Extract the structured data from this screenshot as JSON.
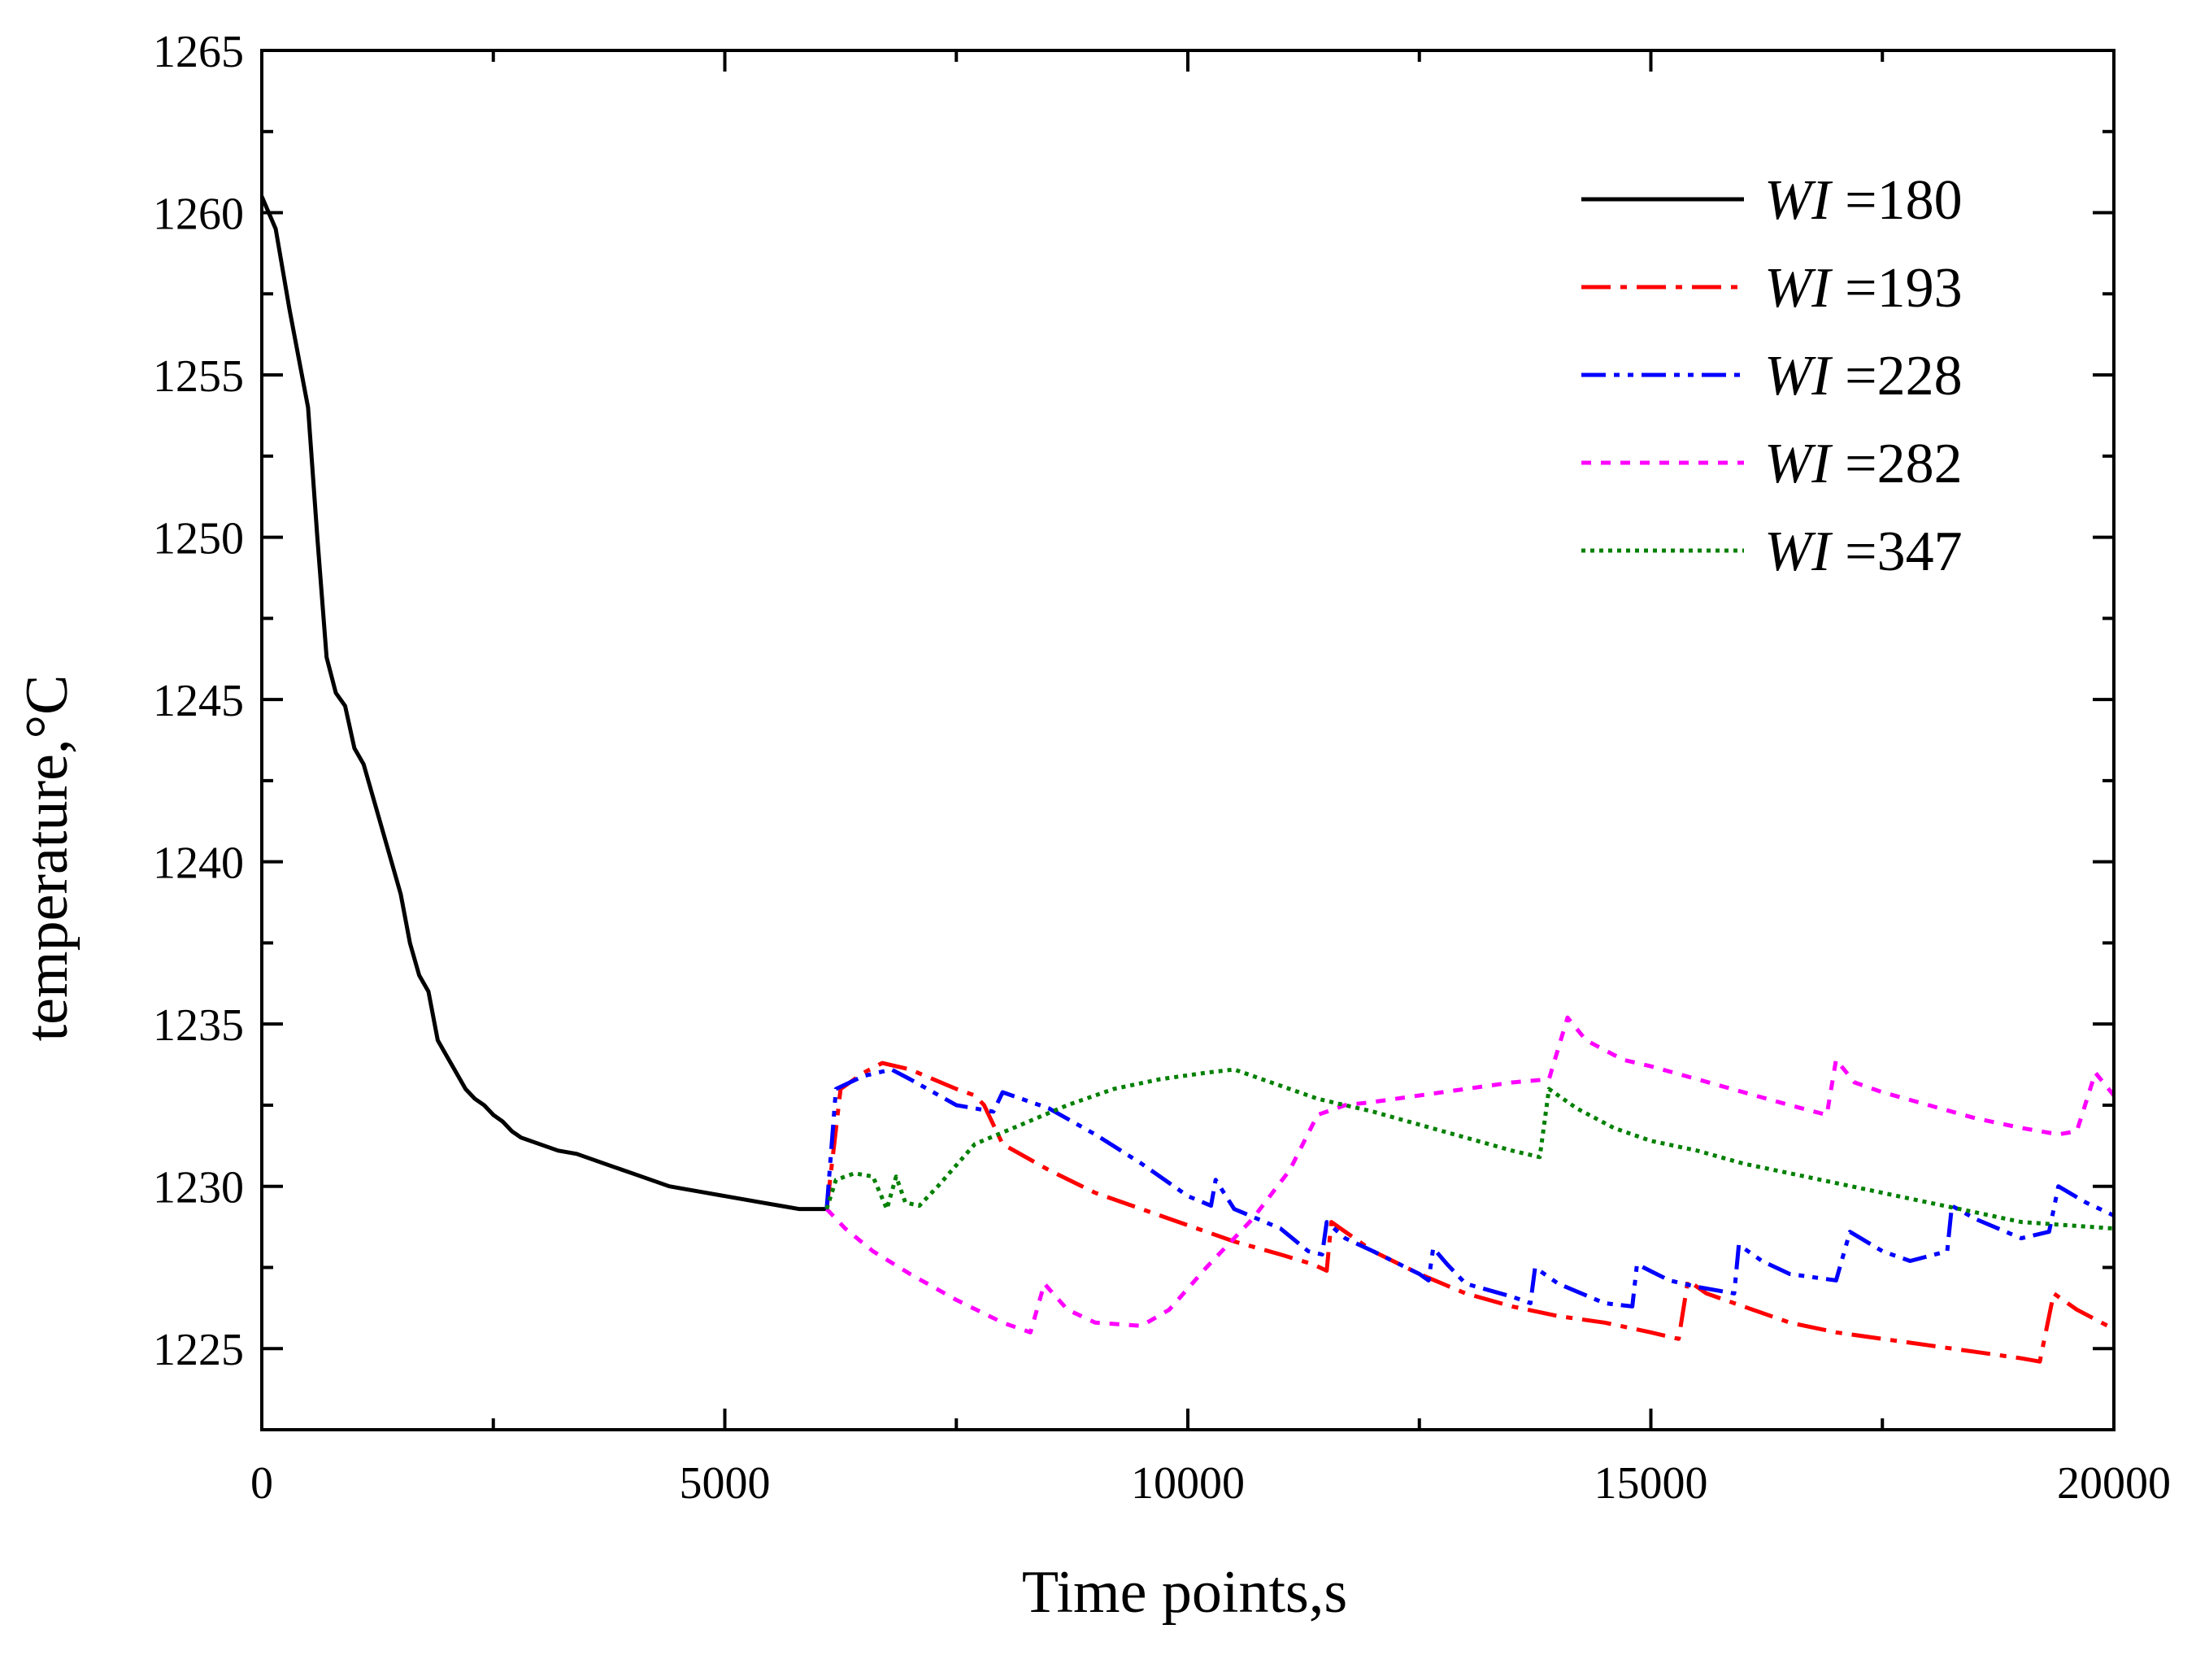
{
  "chart_data": {
    "type": "line",
    "title": "",
    "xlabel": "Time points,s",
    "ylabel": "temperature,°C",
    "xlim": [
      0,
      20000
    ],
    "ylim": [
      1222.5,
      1265
    ],
    "xticks": [
      0,
      5000,
      10000,
      15000,
      20000
    ],
    "yticks": [
      1225,
      1230,
      1235,
      1240,
      1245,
      1250,
      1255,
      1260,
      1265
    ],
    "legend_position": "top-right",
    "series": [
      {
        "name": "WI =180",
        "label_italic": "WI",
        "label_rest": " =180",
        "color": "#000000",
        "style": "solid",
        "points": [
          [
            0,
            1260.5
          ],
          [
            150,
            1259.5
          ],
          [
            300,
            1257
          ],
          [
            500,
            1254
          ],
          [
            600,
            1250
          ],
          [
            700,
            1246.3
          ],
          [
            800,
            1245.2
          ],
          [
            900,
            1244.8
          ],
          [
            1000,
            1243.5
          ],
          [
            1100,
            1243
          ],
          [
            1200,
            1242
          ],
          [
            1300,
            1241
          ],
          [
            1400,
            1240
          ],
          [
            1500,
            1239
          ],
          [
            1600,
            1237.5
          ],
          [
            1700,
            1236.5
          ],
          [
            1800,
            1236
          ],
          [
            1900,
            1234.5
          ],
          [
            2000,
            1234
          ],
          [
            2100,
            1233.5
          ],
          [
            2200,
            1233
          ],
          [
            2300,
            1232.7
          ],
          [
            2400,
            1232.5
          ],
          [
            2500,
            1232.2
          ],
          [
            2600,
            1232
          ],
          [
            2700,
            1231.7
          ],
          [
            2800,
            1231.5
          ],
          [
            3000,
            1231.3
          ],
          [
            3200,
            1231.1
          ],
          [
            3400,
            1231
          ],
          [
            3600,
            1230.8
          ],
          [
            3800,
            1230.6
          ],
          [
            4000,
            1230.4
          ],
          [
            4200,
            1230.2
          ],
          [
            4400,
            1230
          ],
          [
            4600,
            1229.9
          ],
          [
            4800,
            1229.8
          ],
          [
            5000,
            1229.7
          ],
          [
            5200,
            1229.6
          ],
          [
            5400,
            1229.5
          ],
          [
            5600,
            1229.4
          ],
          [
            5800,
            1229.3
          ],
          [
            6100,
            1229.3
          ]
        ]
      },
      {
        "name": "WI =193",
        "label_italic": "WI",
        "label_rest": " =193",
        "color": "#ff0000",
        "style": "dashdot",
        "points": [
          [
            6100,
            1229.3
          ],
          [
            6250,
            1233
          ],
          [
            6500,
            1233.5
          ],
          [
            6700,
            1233.8
          ],
          [
            7000,
            1233.6
          ],
          [
            7500,
            1233
          ],
          [
            7700,
            1232.8
          ],
          [
            7800,
            1232.5
          ],
          [
            8000,
            1231.3
          ],
          [
            8500,
            1230.5
          ],
          [
            9000,
            1229.8
          ],
          [
            9500,
            1229.3
          ],
          [
            10000,
            1228.8
          ],
          [
            10500,
            1228.3
          ],
          [
            11000,
            1227.9
          ],
          [
            11350,
            1227.6
          ],
          [
            11500,
            1227.4
          ],
          [
            11550,
            1228.9
          ],
          [
            11650,
            1228.7
          ],
          [
            12000,
            1228
          ],
          [
            12500,
            1227.3
          ],
          [
            13000,
            1226.7
          ],
          [
            13500,
            1226.3
          ],
          [
            14000,
            1226
          ],
          [
            14500,
            1225.8
          ],
          [
            15000,
            1225.5
          ],
          [
            15300,
            1225.3
          ],
          [
            15400,
            1227.1
          ],
          [
            15600,
            1226.7
          ],
          [
            16000,
            1226.3
          ],
          [
            16500,
            1225.8
          ],
          [
            17000,
            1225.5
          ],
          [
            17500,
            1225.3
          ],
          [
            18000,
            1225.1
          ],
          [
            18500,
            1224.9
          ],
          [
            19000,
            1224.7
          ],
          [
            19200,
            1224.6
          ],
          [
            19350,
            1226.7
          ],
          [
            19600,
            1226.2
          ],
          [
            20000,
            1225.6
          ]
        ]
      },
      {
        "name": "WI =228",
        "label_italic": "WI",
        "label_rest": " =228",
        "color": "#0000ff",
        "style": "dashdotdot",
        "points": [
          [
            6100,
            1229.3
          ],
          [
            6200,
            1233
          ],
          [
            6500,
            1233.4
          ],
          [
            6800,
            1233.6
          ],
          [
            7000,
            1233.3
          ],
          [
            7500,
            1232.5
          ],
          [
            7900,
            1232.3
          ],
          [
            8000,
            1232.9
          ],
          [
            8200,
            1232.7
          ],
          [
            8500,
            1232.4
          ],
          [
            9000,
            1231.6
          ],
          [
            9500,
            1230.7
          ],
          [
            10000,
            1229.7
          ],
          [
            10250,
            1229.4
          ],
          [
            10300,
            1230.2
          ],
          [
            10500,
            1229.3
          ],
          [
            11000,
            1228.7
          ],
          [
            11300,
            1228
          ],
          [
            11450,
            1227.9
          ],
          [
            11500,
            1228.9
          ],
          [
            11700,
            1228.4
          ],
          [
            12000,
            1228
          ],
          [
            12500,
            1227.3
          ],
          [
            12600,
            1227.1
          ],
          [
            12650,
            1228.1
          ],
          [
            12800,
            1227.6
          ],
          [
            13000,
            1227
          ],
          [
            13500,
            1226.6
          ],
          [
            13700,
            1226.4
          ],
          [
            13750,
            1227.5
          ],
          [
            14000,
            1227
          ],
          [
            14500,
            1226.4
          ],
          [
            14800,
            1226.3
          ],
          [
            14850,
            1227.6
          ],
          [
            15200,
            1227.1
          ],
          [
            15500,
            1226.9
          ],
          [
            15900,
            1226.7
          ],
          [
            15950,
            1228.2
          ],
          [
            16200,
            1227.7
          ],
          [
            16500,
            1227.3
          ],
          [
            17000,
            1227.1
          ],
          [
            17150,
            1228.6
          ],
          [
            17500,
            1228
          ],
          [
            17800,
            1227.7
          ],
          [
            18200,
            1228
          ],
          [
            18250,
            1229.4
          ],
          [
            18500,
            1229
          ],
          [
            19000,
            1228.4
          ],
          [
            19300,
            1228.6
          ],
          [
            19400,
            1230
          ],
          [
            19700,
            1229.5
          ],
          [
            20000,
            1229.1
          ]
        ]
      },
      {
        "name": "WI =282",
        "label_italic": "WI",
        "label_rest": " =282",
        "color": "#ff00ff",
        "style": "dashed",
        "points": [
          [
            6100,
            1229.3
          ],
          [
            6300,
            1228.7
          ],
          [
            6600,
            1228
          ],
          [
            7000,
            1227.3
          ],
          [
            7500,
            1226.5
          ],
          [
            8000,
            1225.8
          ],
          [
            8300,
            1225.5
          ],
          [
            8450,
            1227
          ],
          [
            8700,
            1226.2
          ],
          [
            9000,
            1225.8
          ],
          [
            9500,
            1225.7
          ],
          [
            9800,
            1226.2
          ],
          [
            10200,
            1227.5
          ],
          [
            10700,
            1229
          ],
          [
            11100,
            1230.5
          ],
          [
            11400,
            1232.2
          ],
          [
            11700,
            1232.5
          ],
          [
            12000,
            1232.6
          ],
          [
            12500,
            1232.8
          ],
          [
            13000,
            1233
          ],
          [
            13500,
            1233.2
          ],
          [
            13900,
            1233.3
          ],
          [
            14100,
            1235.2
          ],
          [
            14300,
            1234.5
          ],
          [
            14700,
            1233.9
          ],
          [
            15000,
            1233.7
          ],
          [
            15500,
            1233.3
          ],
          [
            16000,
            1232.9
          ],
          [
            16500,
            1232.5
          ],
          [
            16900,
            1232.2
          ],
          [
            17000,
            1233.9
          ],
          [
            17200,
            1233.2
          ],
          [
            17500,
            1232.9
          ],
          [
            18000,
            1232.5
          ],
          [
            18500,
            1232.1
          ],
          [
            19000,
            1231.8
          ],
          [
            19400,
            1231.6
          ],
          [
            19600,
            1231.7
          ],
          [
            19800,
            1233.5
          ],
          [
            20000,
            1232.8
          ]
        ]
      },
      {
        "name": "WI =347",
        "label_italic": "WI",
        "label_rest": " =347",
        "color": "#008000",
        "style": "dotted",
        "points": [
          [
            6100,
            1229.3
          ],
          [
            6200,
            1230.2
          ],
          [
            6400,
            1230.4
          ],
          [
            6600,
            1230.3
          ],
          [
            6750,
            1229.3
          ],
          [
            6850,
            1230.3
          ],
          [
            6950,
            1229.5
          ],
          [
            7100,
            1229.4
          ],
          [
            7300,
            1230
          ],
          [
            7700,
            1231.3
          ],
          [
            8200,
            1231.9
          ],
          [
            8700,
            1232.5
          ],
          [
            9200,
            1233
          ],
          [
            9700,
            1233.3
          ],
          [
            10200,
            1233.5
          ],
          [
            10500,
            1233.6
          ],
          [
            10800,
            1233.3
          ],
          [
            11400,
            1232.7
          ],
          [
            12000,
            1232.3
          ],
          [
            12500,
            1231.9
          ],
          [
            13000,
            1231.5
          ],
          [
            13500,
            1231.1
          ],
          [
            13800,
            1230.9
          ],
          [
            13900,
            1233
          ],
          [
            14200,
            1232.4
          ],
          [
            14600,
            1231.8
          ],
          [
            15000,
            1231.4
          ],
          [
            15500,
            1231.1
          ],
          [
            16000,
            1230.7
          ],
          [
            16500,
            1230.4
          ],
          [
            17000,
            1230.1
          ],
          [
            17500,
            1229.8
          ],
          [
            18000,
            1229.5
          ],
          [
            18500,
            1229.2
          ],
          [
            19000,
            1228.9
          ],
          [
            19500,
            1228.8
          ],
          [
            20000,
            1228.7
          ]
        ]
      }
    ]
  }
}
